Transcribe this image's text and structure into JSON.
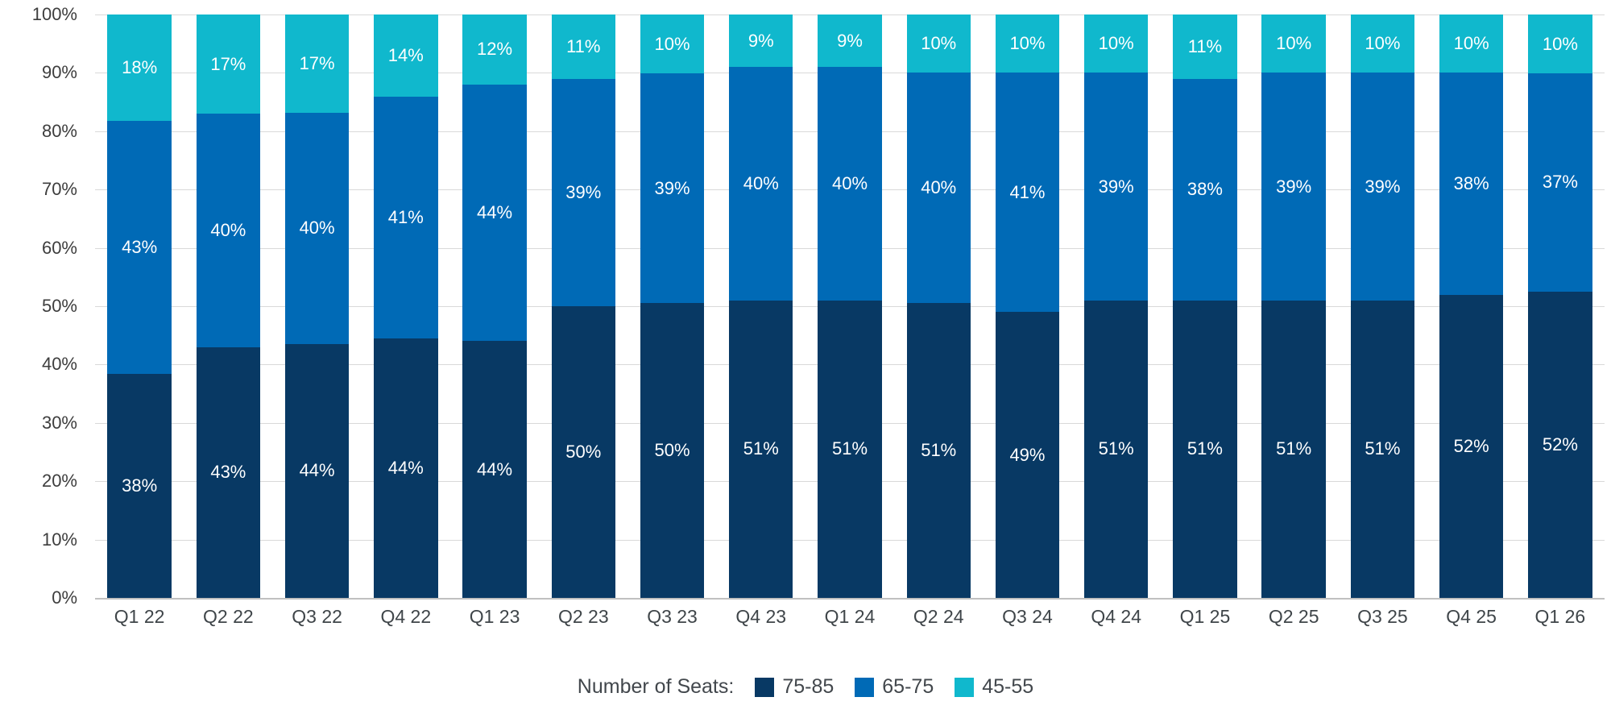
{
  "chart_data": {
    "type": "bar",
    "stacked": true,
    "title": "",
    "xlabel": "",
    "ylabel": "",
    "ylim": [
      0,
      100
    ],
    "y_ticks": [
      "0%",
      "10%",
      "20%",
      "30%",
      "40%",
      "50%",
      "60%",
      "70%",
      "80%",
      "90%",
      "100%"
    ],
    "y_tick_values": [
      0,
      10,
      20,
      30,
      40,
      50,
      60,
      70,
      80,
      90,
      100
    ],
    "grid": "horizontal",
    "legend_position": "bottom",
    "categories": [
      "Q1 22",
      "Q2 22",
      "Q3 22",
      "Q4 22",
      "Q1 23",
      "Q2 23",
      "Q3 23",
      "Q4 23",
      "Q1 24",
      "Q2 24",
      "Q3 24",
      "Q4 24",
      "Q1 25",
      "Q2 25",
      "Q3 25",
      "Q4 25",
      "Q1 26"
    ],
    "series": [
      {
        "name": "75-85",
        "color": "#083964",
        "values": [
          38,
          43,
          44,
          44,
          44,
          50,
          50,
          51,
          51,
          51,
          49,
          51,
          51,
          51,
          51,
          52,
          52
        ]
      },
      {
        "name": "65-75",
        "color": "#006ab6",
        "values": [
          43,
          40,
          40,
          41,
          44,
          39,
          39,
          40,
          40,
          40,
          41,
          39,
          38,
          39,
          39,
          38,
          37
        ]
      },
      {
        "name": "45-55",
        "color": "#10b8cd",
        "values": [
          18,
          17,
          17,
          14,
          12,
          11,
          10,
          9,
          9,
          10,
          10,
          10,
          11,
          10,
          10,
          10,
          10
        ]
      }
    ]
  },
  "legend": {
    "title": "Number of Seats:",
    "items": [
      {
        "label": "75-85",
        "color": "#083964"
      },
      {
        "label": "65-75",
        "color": "#006ab6"
      },
      {
        "label": "45-55",
        "color": "#10b8cd"
      }
    ]
  },
  "colors": {
    "gridline": "#d9d9d9",
    "baseline": "#c0c0c0",
    "axis_text": "#3d3d3d",
    "label_text": "#ffffff"
  }
}
